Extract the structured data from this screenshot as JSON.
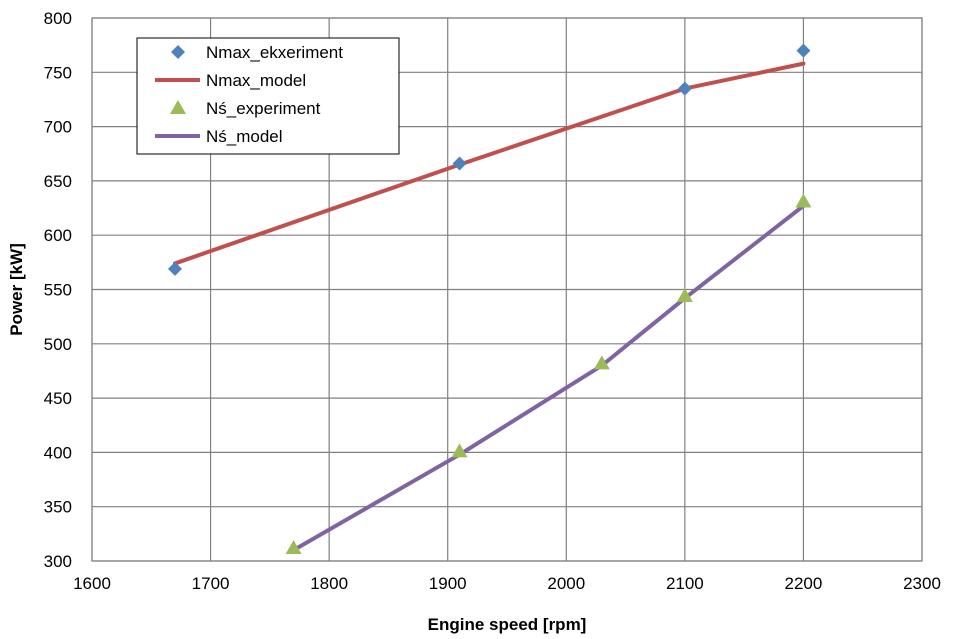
{
  "chart_data": {
    "type": "scatter",
    "xlabel": "Engine speed [rpm]",
    "ylabel": "Power [kW]",
    "xlim": [
      1600,
      2300
    ],
    "ylim": [
      300,
      800
    ],
    "xticks": [
      1600,
      1700,
      1800,
      1900,
      2000,
      2100,
      2200,
      2300
    ],
    "yticks": [
      300,
      350,
      400,
      450,
      500,
      550,
      600,
      650,
      700,
      750,
      800
    ],
    "grid": true,
    "legend_position": "top-left",
    "series": [
      {
        "name": "Nmax_ekxeriment",
        "kind": "markers",
        "marker": "diamond",
        "color": "#4F81BD",
        "x": [
          1670,
          1910,
          2100,
          2200
        ],
        "y": [
          569,
          666,
          735,
          770
        ]
      },
      {
        "name": "Nmax_model",
        "kind": "line",
        "color": "#C0504D",
        "x": [
          1670,
          1910,
          2100,
          2200
        ],
        "y": [
          574,
          665,
          735,
          758
        ]
      },
      {
        "name": "Nś_experiment",
        "kind": "markers",
        "marker": "triangle",
        "color": "#9BBB59",
        "x": [
          1770,
          1910,
          2030,
          2100,
          2200
        ],
        "y": [
          312,
          401,
          482,
          544,
          631
        ]
      },
      {
        "name": "Nś_model",
        "kind": "line",
        "color": "#8064A2",
        "x": [
          1770,
          1910,
          2030,
          2100,
          2200
        ],
        "y": [
          310,
          398,
          480,
          542,
          627
        ]
      }
    ]
  }
}
